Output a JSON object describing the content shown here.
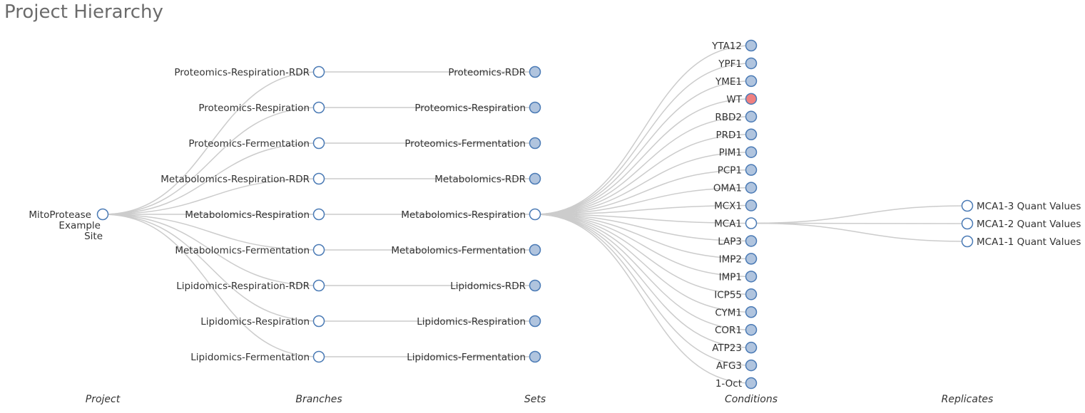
{
  "title": "Project Hierarchy",
  "levels": [
    "Project",
    "Branches",
    "Sets",
    "Conditions",
    "Replicates"
  ],
  "colors": {
    "expanded": "#ffffff",
    "collapsed": "#b0c4de",
    "highlight": "#f08080",
    "stroke": "#4a7ab5",
    "link": "#cccccc"
  },
  "tree": {
    "label_lines": [
      "MitoProtease",
      "Example",
      "Site"
    ],
    "state": "expanded",
    "children": [
      {
        "label": "Proteomics-Respiration-RDR",
        "state": "expanded",
        "children": [
          {
            "label": "Proteomics-RDR",
            "state": "collapsed"
          }
        ]
      },
      {
        "label": "Proteomics-Respiration",
        "state": "expanded",
        "children": [
          {
            "label": "Proteomics-Respiration",
            "state": "collapsed"
          }
        ]
      },
      {
        "label": "Proteomics-Fermentation",
        "state": "expanded",
        "children": [
          {
            "label": "Proteomics-Fermentation",
            "state": "collapsed"
          }
        ]
      },
      {
        "label": "Metabolomics-Respiration-RDR",
        "state": "expanded",
        "children": [
          {
            "label": "Metabolomics-RDR",
            "state": "collapsed"
          }
        ]
      },
      {
        "label": "Metabolomics-Respiration",
        "state": "expanded",
        "children": [
          {
            "label": "Metabolomics-Respiration",
            "state": "expanded",
            "children": [
              {
                "label": "YTA12",
                "state": "collapsed"
              },
              {
                "label": "YPF1",
                "state": "collapsed"
              },
              {
                "label": "YME1",
                "state": "collapsed"
              },
              {
                "label": "WT",
                "state": "highlight"
              },
              {
                "label": "RBD2",
                "state": "collapsed"
              },
              {
                "label": "PRD1",
                "state": "collapsed"
              },
              {
                "label": "PIM1",
                "state": "collapsed"
              },
              {
                "label": "PCP1",
                "state": "collapsed"
              },
              {
                "label": "OMA1",
                "state": "collapsed"
              },
              {
                "label": "MCX1",
                "state": "collapsed"
              },
              {
                "label": "MCA1",
                "state": "expanded",
                "children": [
                  {
                    "label": "MCA1-3 Quant Values",
                    "state": "expanded"
                  },
                  {
                    "label": "MCA1-2 Quant Values",
                    "state": "expanded"
                  },
                  {
                    "label": "MCA1-1 Quant Values",
                    "state": "expanded"
                  }
                ]
              },
              {
                "label": "LAP3",
                "state": "collapsed"
              },
              {
                "label": "IMP2",
                "state": "collapsed"
              },
              {
                "label": "IMP1",
                "state": "collapsed"
              },
              {
                "label": "ICP55",
                "state": "collapsed"
              },
              {
                "label": "CYM1",
                "state": "collapsed"
              },
              {
                "label": "COR1",
                "state": "collapsed"
              },
              {
                "label": "ATP23",
                "state": "collapsed"
              },
              {
                "label": "AFG3",
                "state": "collapsed"
              },
              {
                "label": "1-Oct",
                "state": "collapsed"
              }
            ]
          }
        ]
      },
      {
        "label": "Metabolomics-Fermentation",
        "state": "expanded",
        "children": [
          {
            "label": "Metabolomics-Fermentation",
            "state": "collapsed"
          }
        ]
      },
      {
        "label": "Lipidomics-Respiration-RDR",
        "state": "expanded",
        "children": [
          {
            "label": "Lipidomics-RDR",
            "state": "collapsed"
          }
        ]
      },
      {
        "label": "Lipidomics-Respiration",
        "state": "expanded",
        "children": [
          {
            "label": "Lipidomics-Respiration",
            "state": "collapsed"
          }
        ]
      },
      {
        "label": "Lipidomics-Fermentation",
        "state": "expanded",
        "children": [
          {
            "label": "Lipidomics-Fermentation",
            "state": "collapsed"
          }
        ]
      }
    ]
  }
}
